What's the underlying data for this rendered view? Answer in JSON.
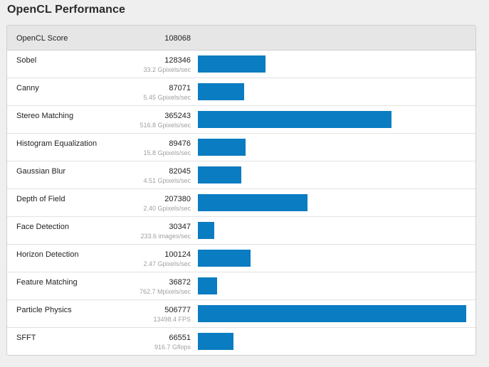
{
  "page": {
    "title": "OpenCL Performance"
  },
  "summary": {
    "label": "OpenCL Score",
    "score": "108068"
  },
  "colors": {
    "bar": "#0a7cc1",
    "header_bg": "#e6e6e6",
    "unit_text": "#a0a0a0"
  },
  "chart_data": {
    "type": "bar",
    "max": 506777,
    "categories": [
      "Sobel",
      "Canny",
      "Stereo Matching",
      "Histogram Equalization",
      "Gaussian Blur",
      "Depth of Field",
      "Face Detection",
      "Horizon Detection",
      "Feature Matching",
      "Particle Physics",
      "SFFT"
    ],
    "values": [
      128346,
      87071,
      365243,
      89476,
      82045,
      207380,
      30347,
      100124,
      36872,
      506777,
      66551
    ]
  },
  "rows": [
    {
      "name": "Sobel",
      "score": "128346",
      "unit": "33.2 Gpixels/sec",
      "value": 128346
    },
    {
      "name": "Canny",
      "score": "87071",
      "unit": "5.45 Gpixels/sec",
      "value": 87071
    },
    {
      "name": "Stereo Matching",
      "score": "365243",
      "unit": "516.8 Gpixels/sec",
      "value": 365243
    },
    {
      "name": "Histogram Equalization",
      "score": "89476",
      "unit": "15.8 Gpixels/sec",
      "value": 89476
    },
    {
      "name": "Gaussian Blur",
      "score": "82045",
      "unit": "4.51 Gpixels/sec",
      "value": 82045
    },
    {
      "name": "Depth of Field",
      "score": "207380",
      "unit": "2.40 Gpixels/sec",
      "value": 207380
    },
    {
      "name": "Face Detection",
      "score": "30347",
      "unit": "233.6 images/sec",
      "value": 30347
    },
    {
      "name": "Horizon Detection",
      "score": "100124",
      "unit": "2.47 Gpixels/sec",
      "value": 100124
    },
    {
      "name": "Feature Matching",
      "score": "36872",
      "unit": "762.7 Mpixels/sec",
      "value": 36872
    },
    {
      "name": "Particle Physics",
      "score": "506777",
      "unit": "13498.4 FPS",
      "value": 506777
    },
    {
      "name": "SFFT",
      "score": "66551",
      "unit": "916.7 Gflops",
      "value": 66551
    }
  ]
}
